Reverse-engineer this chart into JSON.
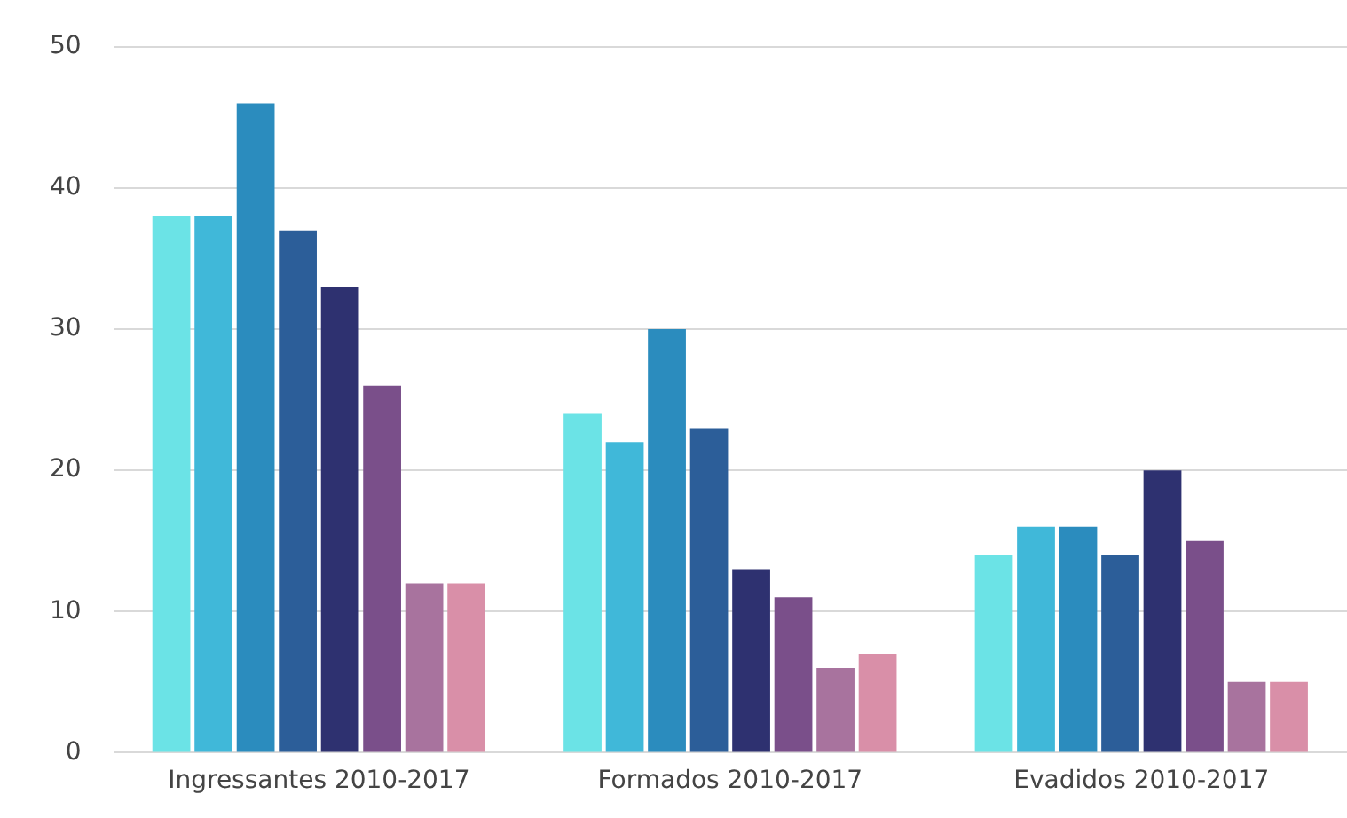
{
  "chart_data": {
    "type": "bar",
    "categories": [
      "Ingressantes 2010-2017",
      "Formados 2010-2017",
      "Evadidos 2010-2017"
    ],
    "series": [
      {
        "color": "#6be3e6",
        "values": [
          38,
          24,
          14
        ]
      },
      {
        "color": "#40b8d9",
        "values": [
          38,
          22,
          16
        ]
      },
      {
        "color": "#2b8cbe",
        "values": [
          46,
          30,
          16
        ]
      },
      {
        "color": "#2c5e99",
        "values": [
          37,
          23,
          14
        ]
      },
      {
        "color": "#2e3170",
        "values": [
          33,
          13,
          20
        ]
      },
      {
        "color": "#7a4f8a",
        "values": [
          26,
          11,
          15
        ]
      },
      {
        "color": "#a8739e",
        "values": [
          12,
          6,
          5
        ]
      },
      {
        "color": "#d98fa8",
        "values": [
          12,
          7,
          5
        ]
      }
    ],
    "ylim": [
      0,
      50
    ],
    "yticks": [
      0,
      10,
      20,
      30,
      40,
      50
    ],
    "grid": "y",
    "legend": false
  }
}
